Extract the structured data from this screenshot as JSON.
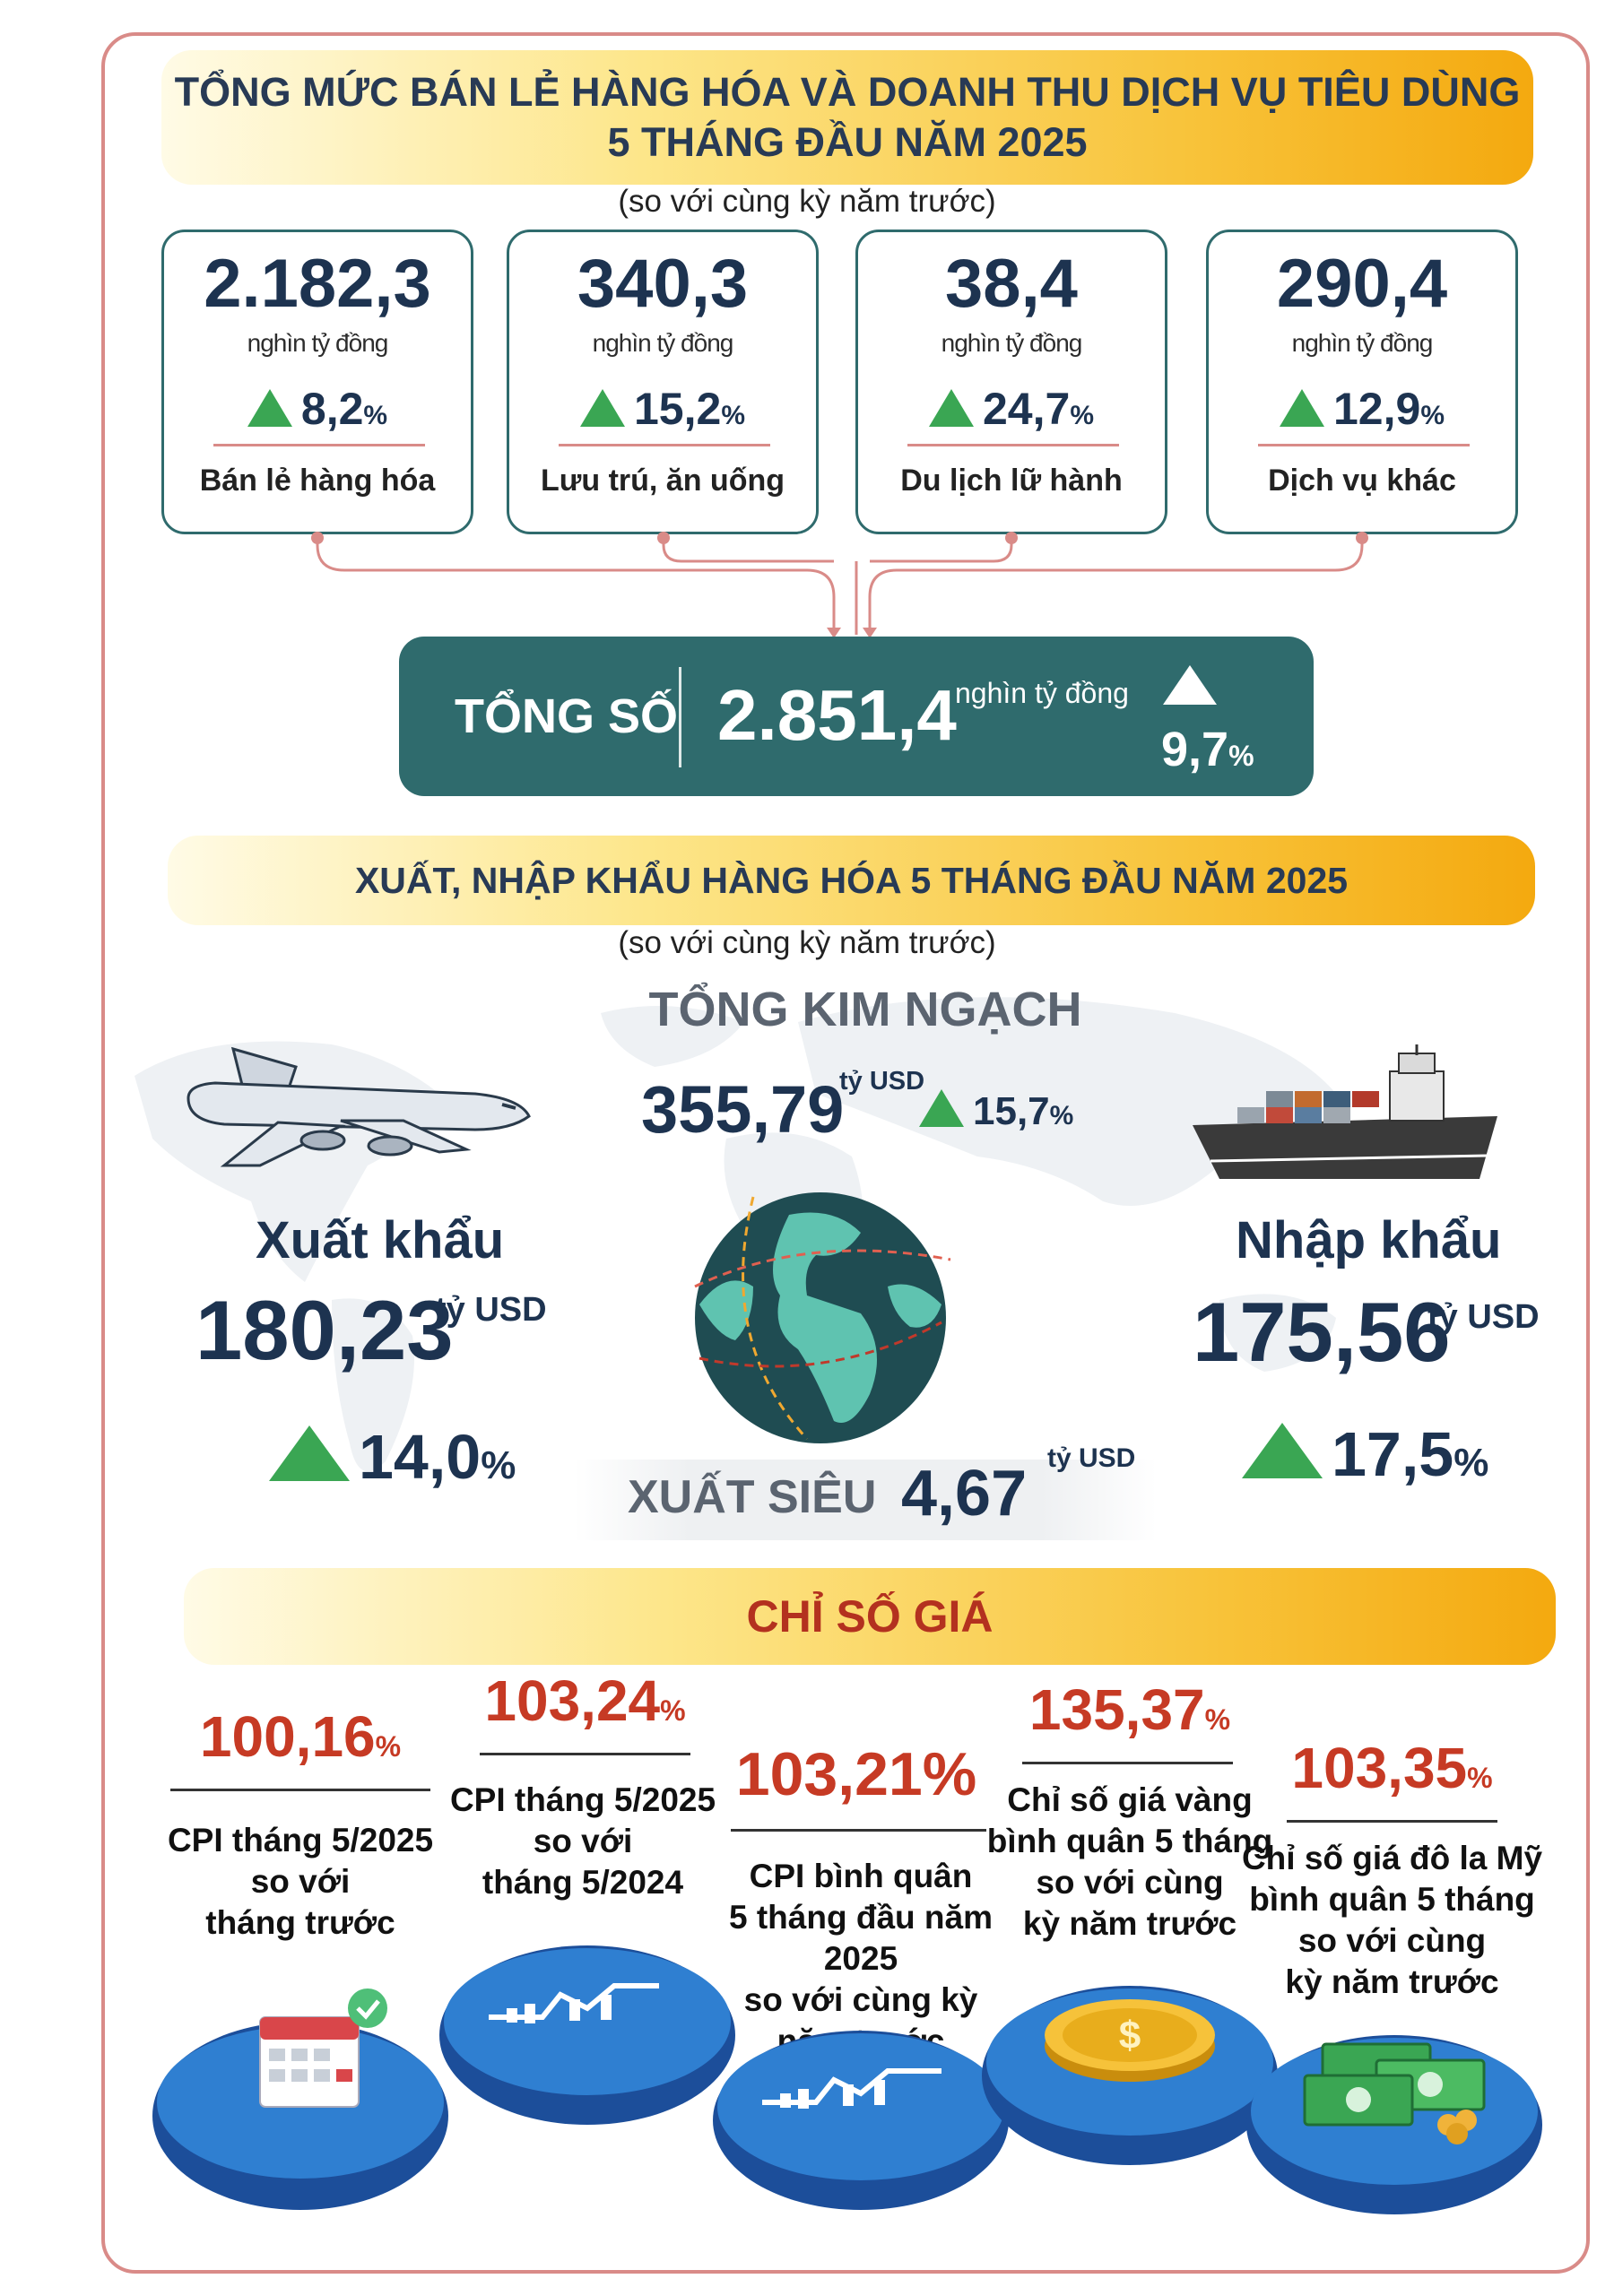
{
  "retail": {
    "title_line1": "TỔNG MỨC BÁN LẺ HÀNG HÓA VÀ DOANH THU DỊCH VỤ TIÊU DÙNG",
    "title_line2": "5 THÁNG ĐẦU NĂM 2025",
    "subtitle": "(so với cùng kỳ năm trước)",
    "cards": [
      {
        "value": "2.182,3",
        "unit": "nghìn tỷ đồng",
        "pct": "8,2",
        "label": "Bán lẻ hàng hóa"
      },
      {
        "value": "340,3",
        "unit": "nghìn tỷ đồng",
        "pct": "15,2",
        "label": "Lưu trú, ăn uống"
      },
      {
        "value": "38,4",
        "unit": "nghìn tỷ đồng",
        "pct": "24,7",
        "label": "Du lịch lữ hành"
      },
      {
        "value": "290,4",
        "unit": "nghìn tỷ đồng",
        "pct": "12,9",
        "label": "Dịch vụ khác"
      }
    ],
    "pct_sign": "%",
    "total": {
      "label": "TỔNG SỐ",
      "value": "2.851,4",
      "unit": "nghìn tỷ đồng",
      "pct": "9,7"
    }
  },
  "trade": {
    "title": "XUẤT, NHẬP KHẨU HÀNG HÓA 5 THÁNG ĐẦU NĂM 2025",
    "subtitle": "(so với cùng kỳ năm trước)",
    "total_label": "TỔNG KIM NGẠCH",
    "total_value": "355,79",
    "unit": "tỷ USD",
    "total_pct": "15,7",
    "export_label": "Xuất khẩu",
    "export_value": "180,23",
    "export_pct": "14,0",
    "import_label": "Nhập khẩu",
    "import_value": "175,56",
    "import_pct": "17,5",
    "surplus_label": "XUẤT SIÊU",
    "surplus_value": "4,67"
  },
  "prices": {
    "title": "CHỈ SỐ GIÁ",
    "items": [
      {
        "value": "100,16",
        "label_lines": [
          "CPI tháng 5/2025",
          "so với",
          "tháng trước"
        ]
      },
      {
        "value": "103,24",
        "label_lines": [
          "CPI tháng 5/2025",
          "so với",
          "tháng 5/2024"
        ]
      },
      {
        "value": "103,21%",
        "label_lines": [
          "CPI bình quân",
          "5 tháng đầu năm 2025",
          "so với cùng kỳ",
          "năm trước"
        ]
      },
      {
        "value": "135,37",
        "label_lines": [
          "Chỉ số giá vàng",
          "bình quân 5 tháng",
          "so với cùng",
          "kỳ năm trước"
        ]
      },
      {
        "value": "103,35",
        "label_lines": [
          "Chỉ số giá đô la Mỹ",
          "bình quân 5 tháng",
          "so với cùng",
          "kỳ năm trước"
        ]
      }
    ]
  },
  "colors": {
    "teal": "#2f6b6d",
    "navy": "#1d3350",
    "green": "#3aa653",
    "red": "#c63a24",
    "gold": "#f6b21b"
  },
  "icons": [
    "airplane-icon",
    "cargo-ship-icon",
    "globe-icon",
    "calendar-check-icon",
    "chart-icon",
    "gold-coin-icon",
    "money-stack-icon",
    "up-arrow-icon"
  ]
}
